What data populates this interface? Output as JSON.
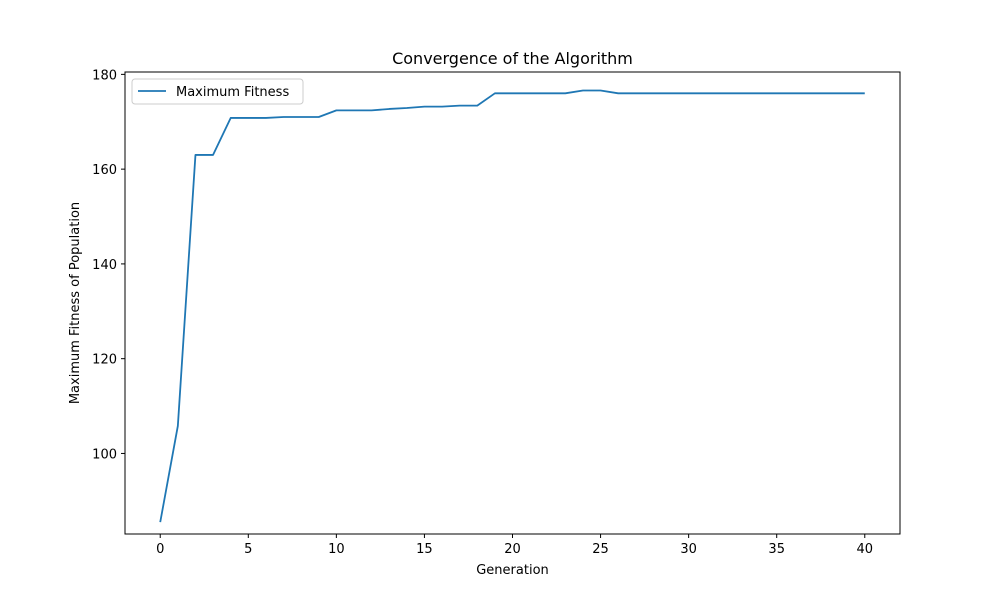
{
  "chart_data": {
    "type": "line",
    "title": "Convergence of the Algorithm",
    "xlabel": "Generation",
    "ylabel": "Maximum Fitness of Population",
    "xlim": [
      -2,
      42
    ],
    "ylim": [
      83,
      180.5
    ],
    "xticks": [
      0,
      5,
      10,
      15,
      20,
      25,
      30,
      35,
      40
    ],
    "yticks": [
      100,
      120,
      140,
      160,
      180
    ],
    "grid": false,
    "legend_position": "top-left",
    "series": [
      {
        "name": "Maximum Fitness",
        "color": "#1f77b4",
        "x": [
          0,
          1,
          2,
          3,
          4,
          5,
          6,
          7,
          8,
          9,
          10,
          11,
          12,
          13,
          14,
          15,
          16,
          17,
          18,
          19,
          20,
          21,
          22,
          23,
          24,
          25,
          26,
          27,
          28,
          29,
          30,
          31,
          32,
          33,
          34,
          35,
          36,
          37,
          38,
          39,
          40
        ],
        "y": [
          85.5,
          105.8,
          163,
          163,
          170.8,
          170.8,
          170.8,
          171,
          171,
          171,
          172.4,
          172.4,
          172.4,
          172.7,
          172.9,
          173.2,
          173.2,
          173.4,
          173.4,
          176,
          176,
          176,
          176,
          176,
          176.6,
          176.6,
          176,
          176,
          176,
          176,
          176,
          176,
          176,
          176,
          176,
          176,
          176,
          176,
          176,
          176,
          176
        ]
      }
    ]
  }
}
